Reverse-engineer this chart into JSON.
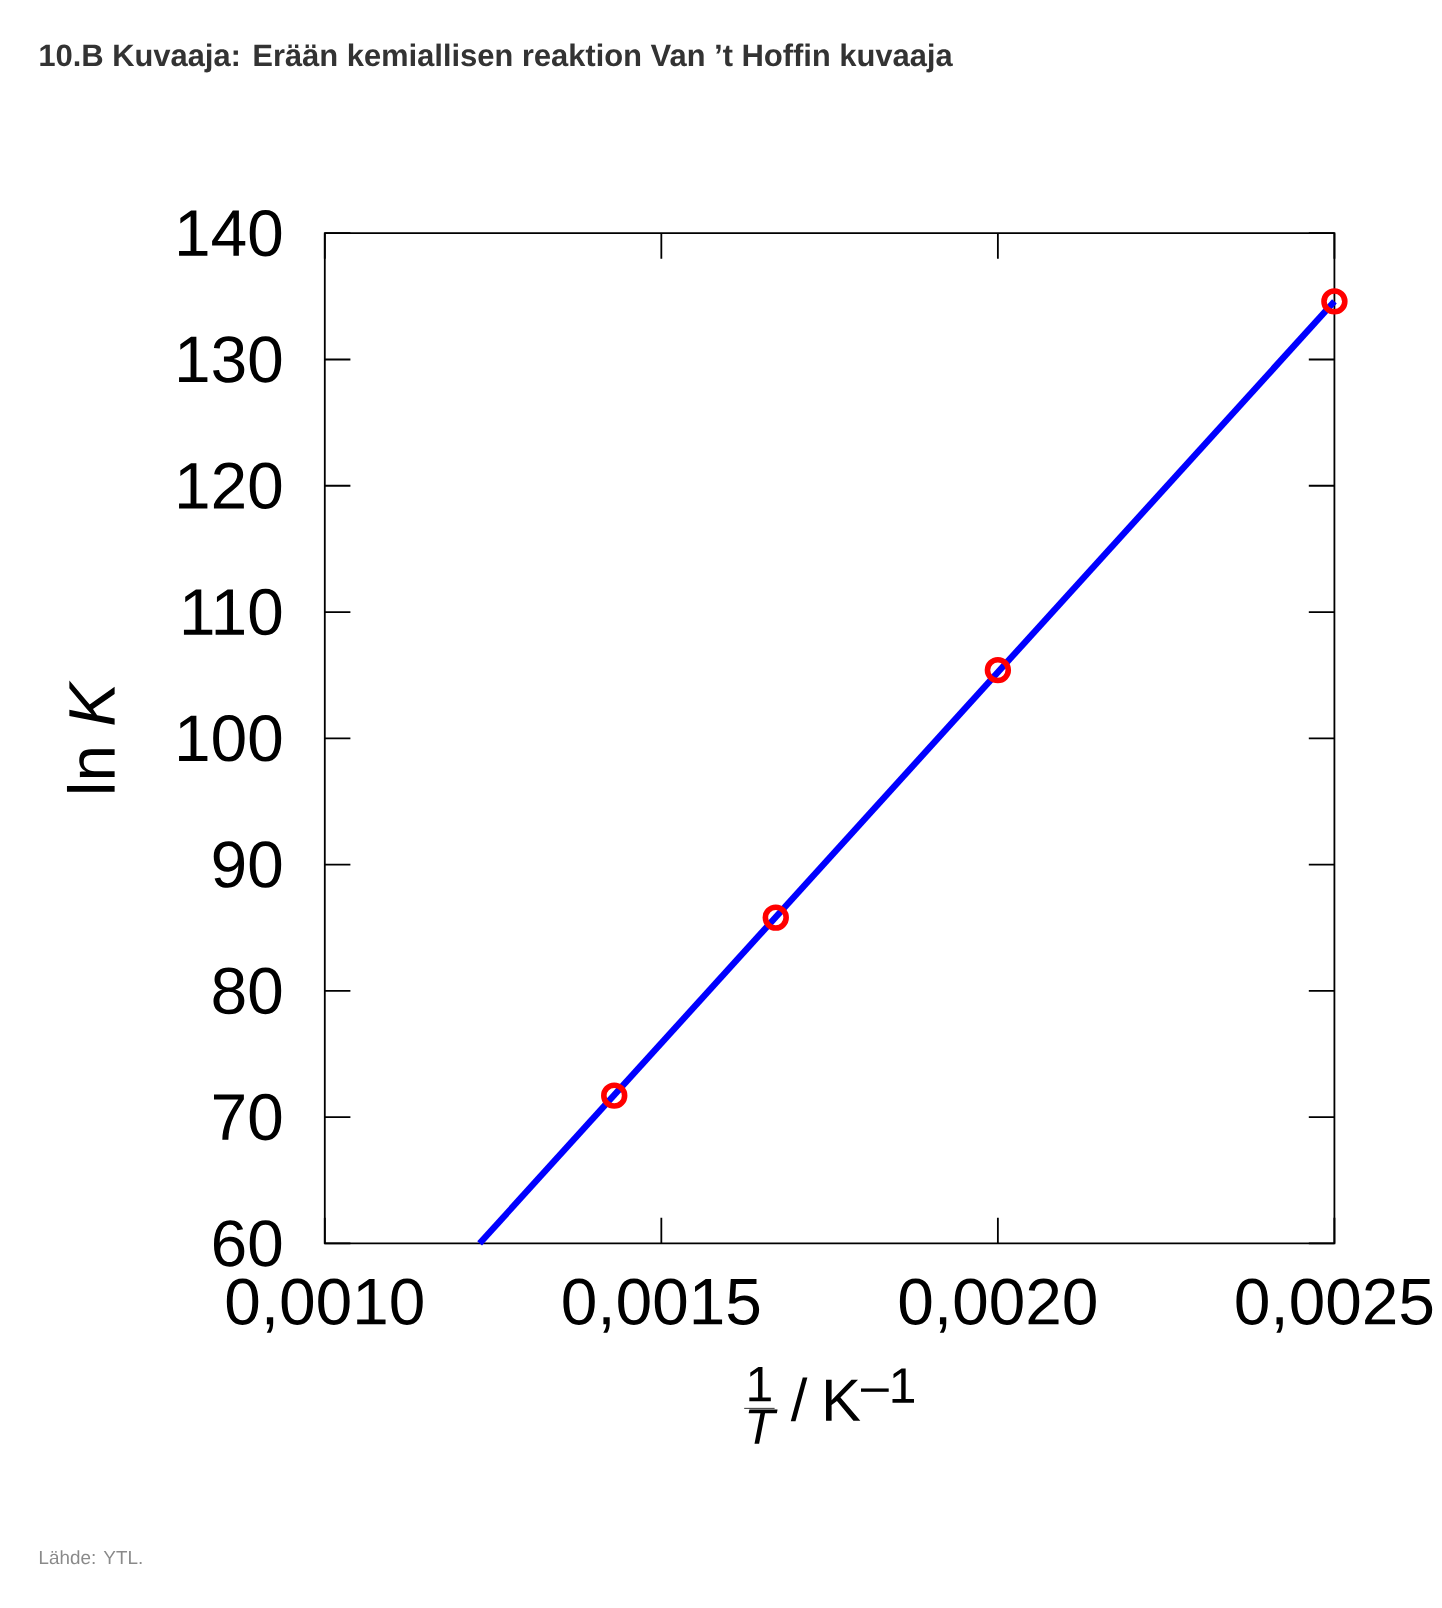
{
  "chart_data": {
    "type": "scatter",
    "title": "10.B Kuvaaja: Erään kemiallisen reaktion Van ’t Hoffin kuvaaja",
    "xlabel": "\\frac{\\mathrm{1}}{T}\\;/\\;\\mathrm{K}^{-\\mathrm{1}}",
    "ylabel": "ln *K*",
    "annotations": [
      "Lähde: YTL."
    ],
    "xlim": [
      0.001,
      0.0025
    ],
    "xticks": [
      {
        "value": 0.001,
        "label": "0,0010"
      },
      {
        "value": 0.0015,
        "label": "0,0015"
      },
      {
        "value": 0.002,
        "label": "0,0020"
      },
      {
        "value": 0.0025,
        "label": "0,0025"
      }
    ],
    "ylim": [
      60,
      140
    ],
    "yticks": [
      60,
      70,
      80,
      90,
      100,
      110,
      120,
      130,
      140
    ],
    "grid": false,
    "series": [
      {
        "type": "line",
        "color": "#0000ff",
        "marker": "none",
        "line_style": "solid",
        "x": [
          0.00123,
          0.0025
        ],
        "values": [
          60,
          134.6
        ]
      },
      {
        "color": "#ff0000",
        "marker": "circle",
        "x": [
          0.00143,
          0.00167,
          0.002,
          0.0025
        ],
        "values": [
          71.7,
          85.8,
          105.4,
          134.6
        ]
      }
    ]
  }
}
